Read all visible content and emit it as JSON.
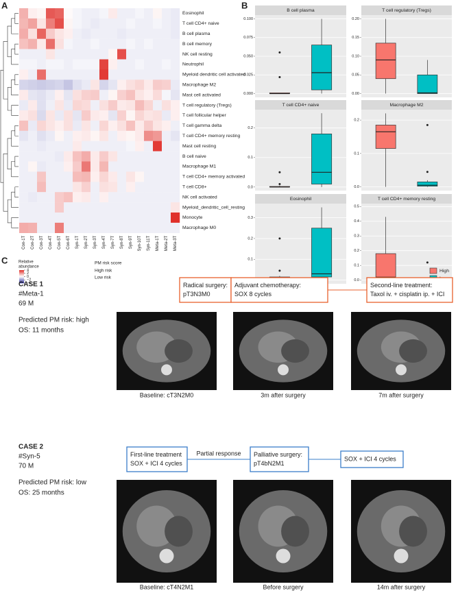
{
  "panels": {
    "a": "A",
    "b": "B",
    "c": "C"
  },
  "chart_data": [
    {
      "type": "heatmap",
      "rows": [
        "Eosinophil",
        "T cell CD4+ naive",
        "B cell plasma",
        "B cell memory",
        "NK cell resting",
        "Neutrophil",
        "Myeloid dendritic cell activated",
        "Macrophage M2",
        "Mast cell activated",
        "T cell regulatory (Tregs)",
        "T cell follicular helper",
        "T cell gamma delta",
        "T cell CD4+ memory resting",
        "Mast cell resting",
        "B cell naive",
        "Macrophage M1",
        "T cell CD4+ memory activated",
        "T cell CD8+",
        "NK cell activated",
        "Myeloid_dendritic_cell_resting",
        "Monocyte",
        "Macrophage M0"
      ],
      "columns": [
        "Con-1T",
        "Con-2T",
        "Con-3T",
        "Con-4T",
        "Con-5T",
        "Con-6T",
        "Syn-1T",
        "Syn-2T",
        "Syn-3T",
        "Syn-4T",
        "Syn-7T",
        "Syn-8T",
        "Syn-9T",
        "Syn-10T",
        "Syn-11T",
        "Meta-1T",
        "Meta-2T",
        "Meta-3T"
      ],
      "column_colors": [
        "#4a8fd6",
        "#4a8fd6",
        "#4a8fd6",
        "#4a8fd6",
        "#4a8fd6",
        "#4a8fd6",
        "#e8602c",
        "#e8602c",
        "#e8602c",
        "#e8602c",
        "#e8602c",
        "#e8602c",
        "#e8602c",
        "#e8602c",
        "#e8602c",
        "#e8602c",
        "#e8602c",
        "#e8602c"
      ],
      "values": [
        [
          1.5,
          0.3,
          0.2,
          3.2,
          3.0,
          0.1,
          -0.2,
          -0.3,
          -0.3,
          -0.2,
          0.4,
          -0.3,
          -0.3,
          -0.2,
          -0.3,
          0.2,
          -0.3,
          -0.4
        ],
        [
          1.4,
          1.8,
          0.5,
          2.5,
          3.4,
          0.2,
          -0.2,
          -0.3,
          -0.4,
          -0.3,
          -0.3,
          -0.3,
          -0.2,
          -0.3,
          -0.3,
          -0.2,
          -0.3,
          -0.4
        ],
        [
          1.6,
          0.6,
          3.0,
          1.0,
          0.5,
          0.3,
          -0.3,
          -0.4,
          -0.3,
          -0.3,
          -0.3,
          -0.4,
          -0.3,
          -0.3,
          -0.3,
          -0.3,
          -0.3,
          -0.4
        ],
        [
          1.2,
          1.5,
          0.4,
          2.8,
          0.6,
          -0.2,
          -0.3,
          -0.3,
          -0.2,
          -0.3,
          -0.3,
          -0.3,
          -0.2,
          -0.3,
          -0.2,
          -0.3,
          -0.3,
          -0.3
        ],
        [
          -0.3,
          -0.3,
          -0.3,
          0.5,
          -0.3,
          -0.3,
          -0.3,
          -0.3,
          -0.3,
          -0.3,
          0.2,
          3.4,
          -0.3,
          -0.3,
          -0.3,
          -0.3,
          -0.3,
          -0.3
        ],
        [
          -0.2,
          -0.2,
          -0.3,
          -0.2,
          -0.2,
          -0.3,
          -0.2,
          -0.2,
          -0.2,
          3.6,
          0.3,
          -0.3,
          -0.3,
          -0.2,
          -0.3,
          -0.3,
          -0.2,
          -0.3
        ],
        [
          0.3,
          -0.3,
          2.8,
          -0.3,
          -0.3,
          -0.3,
          -0.3,
          -0.3,
          -0.3,
          3.8,
          -0.3,
          -0.3,
          -0.3,
          -0.3,
          -0.3,
          -0.3,
          -0.3,
          -0.3
        ],
        [
          -0.8,
          -0.9,
          -1.0,
          -0.9,
          -0.8,
          -1.1,
          -0.6,
          -0.4,
          0.5,
          -0.8,
          -0.5,
          0.3,
          0.6,
          0.8,
          0.4,
          1.0,
          0.9,
          -0.4
        ],
        [
          0.4,
          -0.5,
          -0.6,
          -0.4,
          0.3,
          -0.5,
          0.6,
          0.9,
          1.0,
          -0.3,
          0.2,
          0.9,
          1.2,
          0.5,
          0.3,
          0.7,
          -0.2,
          -0.5
        ],
        [
          -0.4,
          0.4,
          -0.6,
          -0.3,
          0.5,
          -0.4,
          0.8,
          0.7,
          -0.3,
          0.6,
          1.0,
          0.4,
          0.5,
          1.3,
          0.8,
          -0.3,
          0.6,
          0.3
        ],
        [
          0.4,
          0.6,
          -0.7,
          0.5,
          -0.4,
          0.6,
          -0.5,
          1.0,
          0.4,
          0.3,
          -0.5,
          0.9,
          0.2,
          0.8,
          0.5,
          0.6,
          -0.4,
          0.3
        ],
        [
          1.2,
          -0.4,
          0.8,
          0.5,
          0.3,
          0.6,
          -0.4,
          0.5,
          -0.3,
          0.8,
          0.3,
          0.6,
          1.2,
          0.4,
          1.0,
          0.5,
          0.3,
          -0.3
        ],
        [
          -0.5,
          -0.3,
          -0.6,
          -0.4,
          0.2,
          -0.3,
          0.3,
          0.4,
          0.2,
          0.5,
          -0.3,
          0.3,
          0.2,
          0.4,
          2.2,
          2.0,
          -0.3,
          -0.5
        ],
        [
          -0.3,
          -0.3,
          -0.4,
          -0.3,
          -0.3,
          -0.3,
          0.4,
          -0.3,
          -0.3,
          -0.3,
          -0.3,
          -0.3,
          -0.2,
          0.3,
          -0.3,
          3.8,
          -0.3,
          -0.3
        ],
        [
          -0.3,
          -0.3,
          -0.3,
          -0.3,
          -0.4,
          0.4,
          1.2,
          1.6,
          0.4,
          1.0,
          0.5,
          -0.3,
          -0.3,
          -0.3,
          -0.3,
          -0.3,
          -0.3,
          -0.3
        ],
        [
          -0.3,
          0.2,
          -0.4,
          -0.3,
          -0.3,
          0.3,
          1.0,
          2.6,
          0.4,
          1.4,
          -0.3,
          -0.3,
          -0.3,
          -0.3,
          -0.3,
          -0.3,
          -0.3,
          -0.3
        ],
        [
          -0.3,
          -0.3,
          1.1,
          -0.3,
          -0.3,
          -0.3,
          1.3,
          1.4,
          0.3,
          0.8,
          0.4,
          -0.3,
          0.5,
          0.2,
          -0.3,
          -0.3,
          -0.3,
          -0.3
        ],
        [
          -0.3,
          -0.3,
          1.3,
          -0.3,
          -0.3,
          -0.3,
          0.5,
          0.9,
          -0.3,
          0.6,
          0.5,
          -0.3,
          0.3,
          -0.3,
          -0.3,
          -0.3,
          -0.3,
          -0.3
        ],
        [
          -0.3,
          -0.4,
          -0.3,
          -0.3,
          1.0,
          1.2,
          0.3,
          0.4,
          -0.3,
          0.3,
          -0.3,
          -0.3,
          -0.3,
          -0.3,
          -0.3,
          -0.3,
          -0.3,
          -0.3
        ],
        [
          -0.3,
          -0.3,
          -0.3,
          -0.3,
          1.0,
          -0.3,
          -0.3,
          -0.3,
          -0.3,
          -0.3,
          -0.3,
          -0.3,
          -0.3,
          -0.3,
          -0.3,
          -0.3,
          -0.3,
          0.5
        ],
        [
          -0.3,
          -0.3,
          -0.3,
          -0.3,
          -0.3,
          -0.3,
          -0.3,
          -0.3,
          -0.3,
          -0.3,
          -0.3,
          -0.3,
          -0.3,
          -0.3,
          -0.3,
          -0.3,
          -0.3,
          4.0
        ],
        [
          1.6,
          1.5,
          -0.3,
          -0.3,
          2.5,
          -0.3,
          -0.3,
          -0.3,
          -0.3,
          -0.3,
          -0.3,
          -0.3,
          -0.3,
          -0.3,
          -0.3,
          -0.3,
          -0.3,
          -0.3
        ]
      ],
      "color_scale": [
        "#2d2d9a",
        "#ffffff",
        "#e0302a"
      ],
      "lim": [
        -4,
        4
      ],
      "colorbar": {
        "title": [
          "Relative",
          "abundance"
        ],
        "ticks": [
          4,
          2,
          0,
          {
            "value": -2,
            "label": "−2"
          },
          {
            "value": -4,
            "label": "−4"
          }
        ]
      },
      "risk_legend": {
        "title": "PM risk score",
        "items": [
          {
            "name": "High risk",
            "color": "#e8602c"
          },
          {
            "name": "Low risk",
            "color": "#4a8fd6"
          }
        ]
      }
    },
    {
      "type": "boxplot",
      "groups": [
        {
          "name": "High",
          "color": "#f8766d"
        },
        {
          "name": "Low",
          "color": "#00bfc4"
        }
      ],
      "facets": [
        {
          "title": "B cell plasma",
          "ylim": [
            -0.005,
            0.105
          ],
          "yticks": [
            {
              "value": 0,
              "label": "0.000"
            },
            {
              "value": 0.025,
              "label": "0.025"
            },
            {
              "value": 0.05,
              "label": "0.050"
            },
            {
              "value": 0.075,
              "label": "0.075"
            },
            {
              "value": 0.1,
              "label": "0.100"
            }
          ],
          "boxes": [
            {
              "min": 0,
              "q1": 0,
              "median": 0,
              "q3": 0.001,
              "max": 0.001,
              "outliers": [
                0.055,
                0.022
              ]
            },
            {
              "min": 0,
              "q1": 0.005,
              "median": 0.028,
              "q3": 0.065,
              "max": 0.1,
              "outliers": []
            }
          ]
        },
        {
          "title": "T cell regulatory (Tregs)",
          "ylim": [
            -0.01,
            0.21
          ],
          "yticks": [
            {
              "value": 0,
              "label": "0.00"
            },
            {
              "value": 0.05,
              "label": "0.05"
            },
            {
              "value": 0.1,
              "label": "0.10"
            },
            {
              "value": 0.15,
              "label": "0.15"
            },
            {
              "value": 0.2,
              "label": "0.20"
            }
          ],
          "boxes": [
            {
              "min": 0,
              "q1": 0.04,
              "median": 0.09,
              "q3": 0.135,
              "max": 0.2,
              "outliers": []
            },
            {
              "min": 0,
              "q1": 0,
              "median": 0.002,
              "q3": 0.05,
              "max": 0.09,
              "outliers": []
            }
          ]
        },
        {
          "title": "T cell CD4+ naive",
          "ylim": [
            -0.012,
            0.262
          ],
          "yticks": [
            {
              "value": 0,
              "label": "0.0"
            },
            {
              "value": 0.1,
              "label": "0.1"
            },
            {
              "value": 0.2,
              "label": "0.2"
            }
          ],
          "boxes": [
            {
              "min": 0,
              "q1": 0,
              "median": 0,
              "q3": 0.002,
              "max": 0.005,
              "outliers": [
                0.05,
                0.01
              ]
            },
            {
              "min": 0,
              "q1": 0.01,
              "median": 0.05,
              "q3": 0.18,
              "max": 0.25,
              "outliers": []
            }
          ]
        },
        {
          "title": "Macrophage M2",
          "ylim": [
            -0.011,
            0.231
          ],
          "yticks": [
            {
              "value": 0,
              "label": "0.0"
            },
            {
              "value": 0.1,
              "label": "0.1"
            },
            {
              "value": 0.2,
              "label": "0.2"
            }
          ],
          "boxes": [
            {
              "min": 0,
              "q1": 0.115,
              "median": 0.165,
              "q3": 0.185,
              "max": 0.22,
              "outliers": []
            },
            {
              "min": 0,
              "q1": 0.002,
              "median": 0.005,
              "q3": 0.015,
              "max": 0.02,
              "outliers": [
                0.185,
                0.045
              ]
            }
          ]
        },
        {
          "title": "Eosinophil",
          "ylim": [
            -0.018,
            0.368
          ],
          "yticks": [
            {
              "value": 0,
              "label": "0.0"
            },
            {
              "value": 0.1,
              "label": "0.1"
            },
            {
              "value": 0.2,
              "label": "0.2"
            },
            {
              "value": 0.3,
              "label": "0.3"
            }
          ],
          "boxes": [
            {
              "min": 0,
              "q1": 0.002,
              "median": 0.005,
              "q3": 0.015,
              "max": 0.02,
              "outliers": [
                0.2,
                0.045
              ]
            },
            {
              "min": 0,
              "q1": 0.015,
              "median": 0.03,
              "q3": 0.25,
              "max": 0.35,
              "outliers": []
            }
          ]
        },
        {
          "title": "T cell CD4+ memory resting",
          "ylim": [
            -0.025,
            0.52
          ],
          "yticks": [
            {
              "value": 0,
              "label": "0.0"
            },
            {
              "value": 0.1,
              "label": "0.1"
            },
            {
              "value": 0.2,
              "label": "0.2"
            },
            {
              "value": 0.3,
              "label": "0.3"
            },
            {
              "value": 0.4,
              "label": "0.4"
            },
            {
              "value": 0.5,
              "label": "0.5"
            }
          ],
          "boxes": [
            {
              "min": 0,
              "q1": 0.005,
              "median": 0.02,
              "q3": 0.18,
              "max": 0.43,
              "outliers": []
            },
            {
              "min": 0,
              "q1": 0,
              "median": 0,
              "q3": 0.002,
              "max": 0.005,
              "outliers": [
                0.12
              ]
            }
          ]
        }
      ]
    }
  ],
  "cases": [
    {
      "title": "CASE 1",
      "id": "#Meta-1",
      "demographics": "69 M",
      "risk": "Predicted PM risk: high",
      "os": "OS: 11 months",
      "color": "#e8602c",
      "steps": [
        {
          "lines": [
            "Radical surgery:",
            "pT3N3M0"
          ]
        },
        {
          "lines": [
            "Adjuvant chemotherapy:",
            "SOX 8 cycles"
          ]
        },
        {
          "lines": [
            "Second-line treatment:",
            "Taxol iv. + cisplatin ip. + ICI"
          ]
        }
      ],
      "captions": [
        "Baseline: cT3N2M0",
        "3m after surgery",
        "7m after surgery"
      ]
    },
    {
      "title": "CASE 2",
      "id": "#Syn-5",
      "demographics": "70 M",
      "risk": "Predicted PM risk: low",
      "os": "OS: 25 months",
      "color": "#3a7dc9",
      "steps": [
        {
          "lines": [
            "First-line treatment",
            "SOX + ICI 4 cycles"
          ]
        },
        {
          "lines": [
            "Palliative surgery:",
            "pT4bN2M1"
          ]
        },
        {
          "lines": [
            "SOX + ICI 4 cycles"
          ]
        }
      ],
      "connector": "Partial response",
      "captions": [
        "Baseline: cT4N2M1",
        "Before surgery",
        "14m after surgery"
      ]
    }
  ]
}
